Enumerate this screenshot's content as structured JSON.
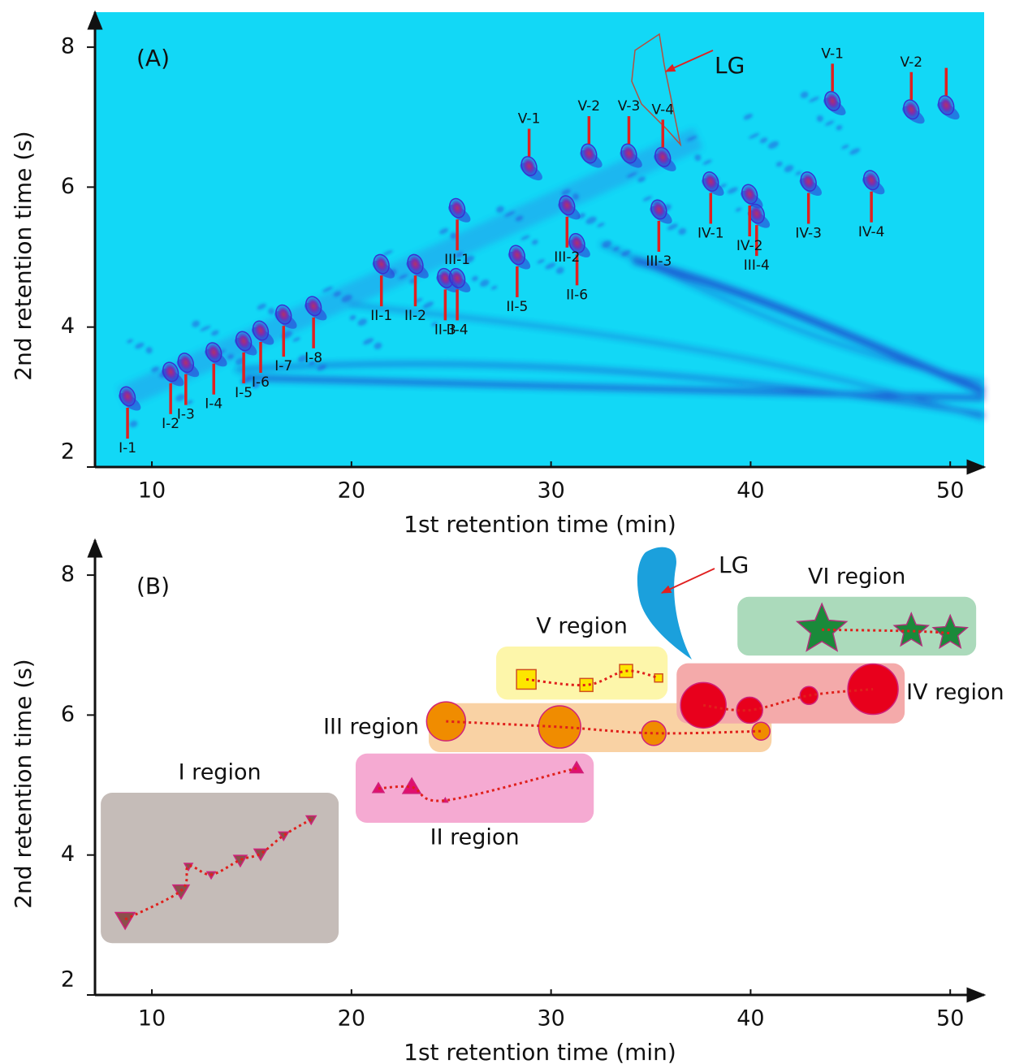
{
  "chart_data": [
    {
      "type": "peak-map",
      "panel": "(A)",
      "x_label": "1st retention time (min)",
      "y_label": "2nd retention time (s)",
      "xlim": [
        7.15,
        51.7
      ],
      "ylim": [
        2,
        8.5
      ],
      "xticks": [
        10,
        20,
        30,
        40,
        50
      ],
      "yticks": [
        2,
        4,
        6,
        8
      ],
      "background": "#12d8f6",
      "color": "#2b3fd6",
      "label_color": "#e02020",
      "annotation": "LG",
      "annotation_x": 36,
      "annotation_y": 7.7,
      "point_labels": [
        "I-1",
        "I-2",
        "I-3",
        "I-4",
        "I-5",
        "I-6",
        "I-7",
        "I-8",
        "II-1",
        "II-2",
        "II-3",
        "II-4",
        "II-5",
        "II-6",
        "III-1",
        "III-2",
        "III-3",
        "III-4",
        "IV-1",
        "IV-2",
        "IV-3",
        "IV-4",
        "V-1",
        "V-2",
        "V-3",
        "V-4",
        "V-1",
        "V-2",
        null
      ],
      "x": [
        8.78,
        10.94,
        11.7,
        13.1,
        14.6,
        15.45,
        16.6,
        18.1,
        21.5,
        23.2,
        24.7,
        25.3,
        28.3,
        31.3,
        25.3,
        30.8,
        35.4,
        40.3,
        38.0,
        39.95,
        42.9,
        46.05,
        28.9,
        31.9,
        33.9,
        35.6,
        44.1,
        48.05,
        49.8
      ],
      "values": [
        3.01,
        3.36,
        3.49,
        3.64,
        3.8,
        3.95,
        4.18,
        4.3,
        4.9,
        4.9,
        4.7,
        4.7,
        5.03,
        5.2,
        5.7,
        5.74,
        5.68,
        5.62,
        6.08,
        5.9,
        6.08,
        6.1,
        6.3,
        6.48,
        6.48,
        6.43,
        7.23,
        7.11,
        7.17
      ]
    },
    {
      "type": "scatter",
      "panel": "(B)",
      "x_label": "1st retention time (min)",
      "y_label": "2nd retention time (s)",
      "xlim": [
        7.15,
        51.7
      ],
      "ylim": [
        2,
        8.5
      ],
      "xticks": [
        10,
        20,
        30,
        40,
        50
      ],
      "yticks": [
        2,
        4,
        6,
        8
      ],
      "annotation": "LG",
      "annotation_x": 36,
      "annotation_y": 7.5,
      "line_color": "#e0201c",
      "series": [
        {
          "name": "I region",
          "marker": "triangle-down",
          "color": "#8b4f4a",
          "region_color": "#c5bcb8",
          "label_position": "top",
          "region_xlim": [
            7.44,
            19.36
          ],
          "region_ylim": [
            2.74,
            4.89
          ],
          "x": [
            8.66,
            11.46,
            11.83,
            12.97,
            14.43,
            15.45,
            16.6,
            17.98
          ],
          "values": [
            3.08,
            3.49,
            3.84,
            3.72,
            3.93,
            4.02,
            4.28,
            4.51
          ],
          "sizes": [
            12,
            10,
            5,
            5,
            8,
            8,
            6,
            6
          ]
        },
        {
          "name": "II region",
          "marker": "triangle-up",
          "color": "#e0106e",
          "region_color": "#f5aad2",
          "label_position": "bottom",
          "region_xlim": [
            20.21,
            32.14
          ],
          "region_ylim": [
            4.46,
            5.45
          ],
          "x": [
            21.35,
            23.02,
            24.7,
            31.28
          ],
          "values": [
            4.95,
            4.97,
            4.78,
            5.24
          ],
          "sizes": [
            7,
            11,
            3,
            8
          ]
        },
        {
          "name": "III region",
          "marker": "circle",
          "color": "#f08c00",
          "region_color": "#f9d2a4",
          "label_position": "left",
          "region_xlim": [
            23.87,
            41.05
          ],
          "region_ylim": [
            5.47,
            6.17
          ],
          "x": [
            24.74,
            30.43,
            35.15,
            40.52
          ],
          "values": [
            5.91,
            5.83,
            5.74,
            5.77
          ],
          "sizes": [
            24,
            26,
            15,
            11
          ]
        },
        {
          "name": "IV region",
          "marker": "circle",
          "color": "#e8001c",
          "region_color": "#f4aaaa",
          "label_position": "right",
          "region_xlim": [
            36.29,
            47.72
          ],
          "region_ylim": [
            5.88,
            6.74
          ],
          "x": [
            37.63,
            39.95,
            42.92,
            46.13
          ],
          "values": [
            6.14,
            6.07,
            6.28,
            6.37
          ],
          "sizes": [
            28,
            16,
            11,
            31
          ]
        },
        {
          "name": "V region",
          "marker": "square",
          "color": "#fde600",
          "region_color": "#fdf6aa",
          "label_position": "top",
          "region_xlim": [
            27.25,
            35.84
          ],
          "region_ylim": [
            6.22,
            6.98
          ],
          "x": [
            28.76,
            31.77,
            33.76,
            35.39
          ],
          "values": [
            6.51,
            6.43,
            6.63,
            6.53
          ],
          "sizes": [
            12,
            8,
            8,
            5
          ]
        },
        {
          "name": "VI region",
          "marker": "star",
          "color": "#1a8a3a",
          "region_color": "#abdabb",
          "label_position": "top",
          "region_xlim": [
            39.34,
            51.3
          ],
          "region_ylim": [
            6.85,
            7.69
          ],
          "x": [
            43.57,
            48.05,
            50.0
          ],
          "values": [
            7.22,
            7.2,
            7.17
          ],
          "sizes": [
            32,
            22,
            22
          ]
        }
      ]
    }
  ]
}
